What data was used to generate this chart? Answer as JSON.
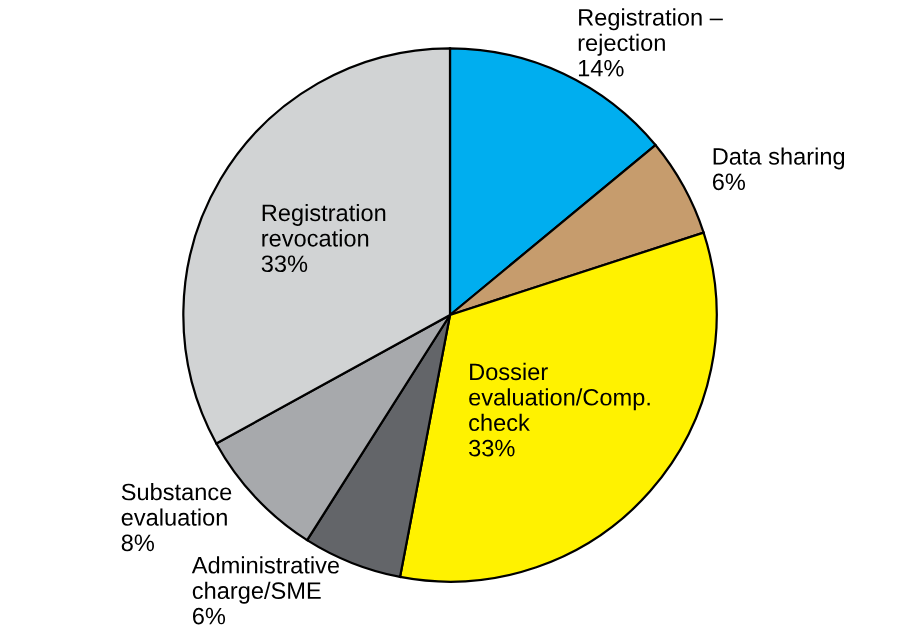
{
  "chart_data": {
    "type": "pie",
    "categories": [
      "Registration – rejection",
      "Data sharing",
      "Dossier evaluation/Comp. check",
      "Administrative charge/SME",
      "Substance evaluation",
      "Registration revocation"
    ],
    "values": [
      14,
      6,
      33,
      6,
      8,
      33
    ],
    "value_labels": [
      "14%",
      "6%",
      "33%",
      "6%",
      "8%",
      "33%"
    ],
    "colors": [
      "#00aeef",
      "#c69c6d",
      "#fff200",
      "#636569",
      "#a7a9ac",
      "#d1d3d4"
    ],
    "legend": false
  }
}
